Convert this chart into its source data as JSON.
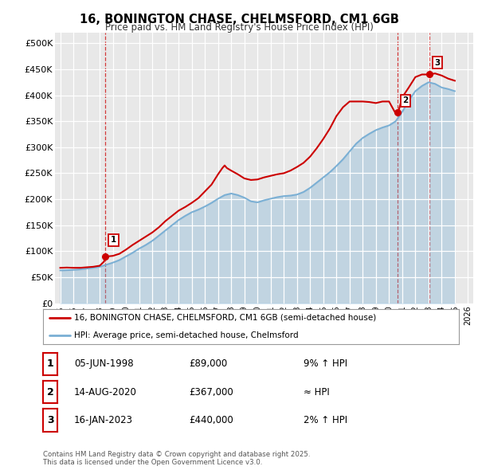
{
  "title": "16, BONINGTON CHASE, CHELMSFORD, CM1 6GB",
  "subtitle": "Price paid vs. HM Land Registry's House Price Index (HPI)",
  "background_color": "#e8e8e8",
  "plot_background": "#e8e8e8",
  "property_color": "#cc0000",
  "hpi_color": "#7aafd4",
  "legend_label_property": "16, BONINGTON CHASE, CHELMSFORD, CM1 6GB (semi-detached house)",
  "legend_label_hpi": "HPI: Average price, semi-detached house, Chelmsford",
  "sales": [
    {
      "date": 1998.43,
      "price": 89000,
      "label": "1"
    },
    {
      "date": 2020.62,
      "price": 367000,
      "label": "2"
    },
    {
      "date": 2023.04,
      "price": 440000,
      "label": "3"
    }
  ],
  "table_rows": [
    {
      "num": "1",
      "date": "05-JUN-1998",
      "price": "£89,000",
      "rel": "9% ↑ HPI"
    },
    {
      "num": "2",
      "date": "14-AUG-2020",
      "price": "£367,000",
      "rel": "≈ HPI"
    },
    {
      "num": "3",
      "date": "16-JAN-2023",
      "price": "£440,000",
      "rel": "2% ↑ HPI"
    }
  ],
  "footnote": "Contains HM Land Registry data © Crown copyright and database right 2025.\nThis data is licensed under the Open Government Licence v3.0.",
  "ylim": [
    0,
    520000
  ],
  "yticks": [
    0,
    50000,
    100000,
    150000,
    200000,
    250000,
    300000,
    350000,
    400000,
    450000,
    500000
  ],
  "ytick_labels": [
    "£0",
    "£50K",
    "£100K",
    "£150K",
    "£200K",
    "£250K",
    "£300K",
    "£350K",
    "£400K",
    "£450K",
    "£500K"
  ],
  "xlim_start": 1994.6,
  "xlim_end": 2026.4,
  "xtick_years": [
    1995,
    1996,
    1997,
    1998,
    1999,
    2000,
    2001,
    2002,
    2003,
    2004,
    2005,
    2006,
    2007,
    2008,
    2009,
    2010,
    2011,
    2012,
    2013,
    2014,
    2015,
    2016,
    2017,
    2018,
    2019,
    2020,
    2021,
    2022,
    2023,
    2024,
    2025,
    2026
  ],
  "hpi_years": [
    1995,
    1995.5,
    1996,
    1996.5,
    1997,
    1997.5,
    1998,
    1998.5,
    1999,
    1999.5,
    2000,
    2000.5,
    2001,
    2001.5,
    2002,
    2002.5,
    2003,
    2003.5,
    2004,
    2004.5,
    2005,
    2005.5,
    2006,
    2006.5,
    2007,
    2007.5,
    2008,
    2008.5,
    2009,
    2009.5,
    2010,
    2010.5,
    2011,
    2011.5,
    2012,
    2012.5,
    2013,
    2013.5,
    2014,
    2014.5,
    2015,
    2015.5,
    2016,
    2016.5,
    2017,
    2017.5,
    2018,
    2018.5,
    2019,
    2019.5,
    2020,
    2020.5,
    2021,
    2021.5,
    2022,
    2022.5,
    2023,
    2023.5,
    2024,
    2024.5,
    2025
  ],
  "hpi_values": [
    63000,
    63500,
    64000,
    65000,
    66500,
    68000,
    70000,
    74000,
    78000,
    83000,
    90000,
    97000,
    105000,
    112000,
    120000,
    130000,
    140000,
    150000,
    160000,
    168000,
    175000,
    180000,
    186000,
    193000,
    201000,
    208000,
    211000,
    208000,
    203000,
    196000,
    194000,
    198000,
    201000,
    204000,
    206000,
    207000,
    209000,
    214000,
    222000,
    232000,
    242000,
    252000,
    264000,
    277000,
    292000,
    307000,
    318000,
    326000,
    333000,
    338000,
    342000,
    350000,
    368000,
    390000,
    408000,
    418000,
    425000,
    422000,
    415000,
    412000,
    408000
  ],
  "prop_years": [
    1995,
    1995.5,
    1996,
    1996.5,
    1997,
    1997.5,
    1998,
    1998.33,
    1998.43,
    1998.6,
    1999,
    1999.5,
    2000,
    2000.5,
    2001,
    2001.5,
    2002,
    2002.5,
    2003,
    2003.5,
    2004,
    2004.5,
    2005,
    2005.5,
    2006,
    2006.5,
    2007,
    2007.33,
    2007.5,
    2007.67,
    2008,
    2008.5,
    2009,
    2009.5,
    2010,
    2010.5,
    2011,
    2011.5,
    2012,
    2012.5,
    2013,
    2013.5,
    2014,
    2014.5,
    2015,
    2015.5,
    2016,
    2016.5,
    2017,
    2017.5,
    2018,
    2018.5,
    2019,
    2019.5,
    2020,
    2020.5,
    2020.62,
    2020.75,
    2021,
    2021.5,
    2022,
    2022.5,
    2023.04,
    2023.5,
    2024,
    2024.5,
    2025
  ],
  "prop_values": [
    68000,
    68500,
    68000,
    68000,
    69000,
    70000,
    72000,
    80000,
    89000,
    90000,
    91000,
    95000,
    103000,
    112000,
    120000,
    128000,
    136000,
    146000,
    158000,
    168000,
    178000,
    185000,
    193000,
    202000,
    215000,
    228000,
    248000,
    260000,
    265000,
    260000,
    255000,
    248000,
    240000,
    237000,
    238000,
    242000,
    245000,
    248000,
    250000,
    255000,
    262000,
    270000,
    282000,
    298000,
    316000,
    336000,
    360000,
    377000,
    388000,
    388000,
    388000,
    387000,
    385000,
    388000,
    388000,
    365000,
    367000,
    372000,
    396000,
    415000,
    435000,
    440000,
    440000,
    442000,
    438000,
    432000,
    428000
  ]
}
